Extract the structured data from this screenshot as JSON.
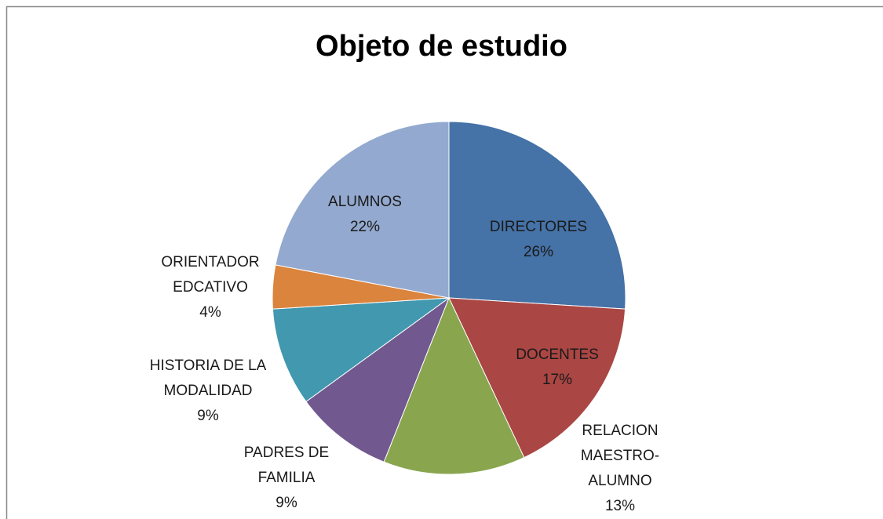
{
  "chart_data": {
    "type": "pie",
    "title": "Objeto de estudio",
    "categories": [
      "DIRECTORES",
      "DOCENTES",
      "RELACION MAESTRO-ALUMNO",
      "PADRES DE FAMILIA",
      "HISTORIA DE LA MODALIDAD",
      "ORIENTADOR EDCATIVO",
      "ALUMNOS"
    ],
    "values": [
      26,
      17,
      13,
      9,
      9,
      4,
      22
    ],
    "value_labels": [
      "26%",
      "17%",
      "13%",
      "9%",
      "9%",
      "4%",
      "22%"
    ],
    "colors": [
      "#4572a7",
      "#aa4643",
      "#89a54e",
      "#71588f",
      "#4198af",
      "#db843d",
      "#93a9cf"
    ]
  }
}
